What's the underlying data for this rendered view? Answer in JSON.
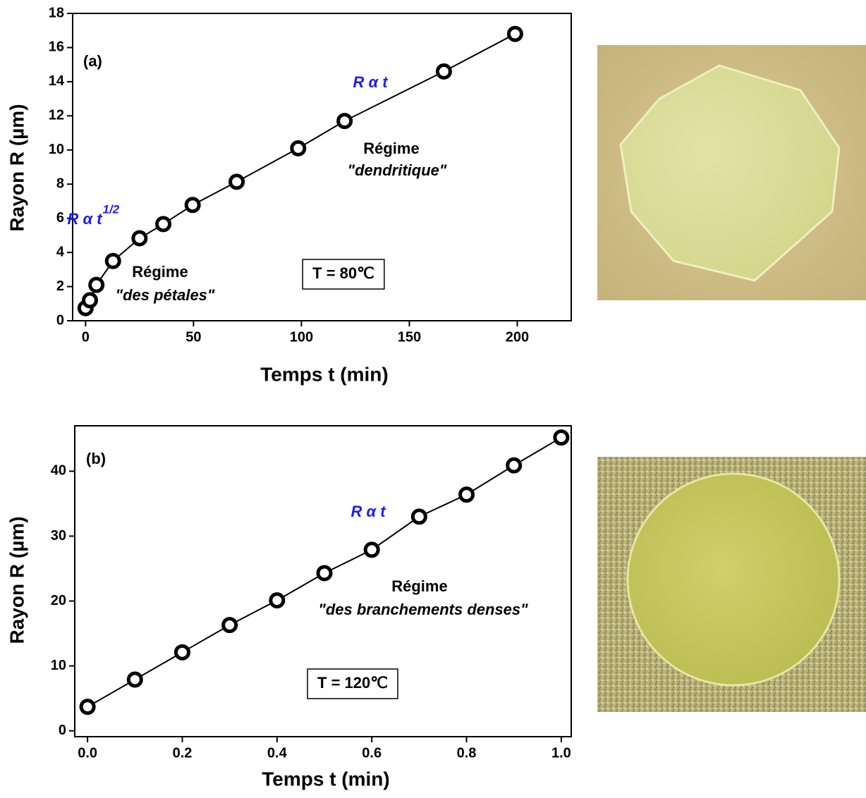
{
  "chart_data": [
    {
      "type": "scatter",
      "xlabel": "Temps t (min)",
      "ylabel": "Rayon R (µm)",
      "x": [
        0,
        2,
        5,
        12.7,
        25,
        36,
        49.6,
        70,
        98.5,
        120,
        166,
        199
      ],
      "series": [
        {
          "color": "#000000",
          "values": [
            0.74,
            1.2,
            2.1,
            3.5,
            4.83,
            5.66,
            6.78,
            8.14,
            10.1,
            11.7,
            14.6,
            16.8
          ]
        }
      ],
      "xlim": [
        -6,
        225
      ],
      "ylim": [
        0,
        18
      ],
      "xticks": [
        0,
        50,
        100,
        150,
        200
      ],
      "yticks": [
        0,
        2,
        4,
        6,
        8,
        10,
        12,
        14,
        16,
        18
      ],
      "annotation_color": "#1a1aff",
      "annotations": [
        {
          "text": "(a)"
        },
        {
          "text": "R α t",
          "accent": true
        },
        {
          "text": "R α t",
          "sup": "1/2",
          "accent": true
        },
        {
          "text": "Régime"
        },
        {
          "text": "\"dendritique\""
        },
        {
          "text": "Régime"
        },
        {
          "text": "\"des pétales\""
        },
        {
          "text": "T = 80℃",
          "boxed": true
        }
      ]
    },
    {
      "type": "scatter",
      "xlabel": "Temps t (min)",
      "ylabel": "Rayon R (µm)",
      "x": [
        0,
        0.1,
        0.2,
        0.3,
        0.4,
        0.5,
        0.6,
        0.7,
        0.8,
        0.9,
        1.0
      ],
      "series": [
        {
          "color": "#000000",
          "values": [
            3.7,
            7.9,
            12.1,
            16.3,
            20.1,
            24.3,
            27.9,
            33.0,
            36.4,
            40.9,
            45.2
          ]
        }
      ],
      "xlim": [
        -0.027,
        1.021
      ],
      "ylim": [
        -0.9,
        47
      ],
      "xticks": [
        {
          "value": 0,
          "label": "0.0"
        },
        0.2,
        0.4,
        0.6,
        0.8,
        {
          "value": 1,
          "label": "1.0"
        }
      ],
      "yticks": [
        0,
        10,
        20,
        30,
        40
      ],
      "annotation_color": "#1a1aff",
      "annotations": [
        {
          "text": "(b)"
        },
        {
          "text": "R α t",
          "accent": true
        },
        {
          "text": "Régime"
        },
        {
          "text": "\"des branchements denses\""
        },
        {
          "text": "T = 120℃",
          "boxed": true
        }
      ]
    }
  ]
}
